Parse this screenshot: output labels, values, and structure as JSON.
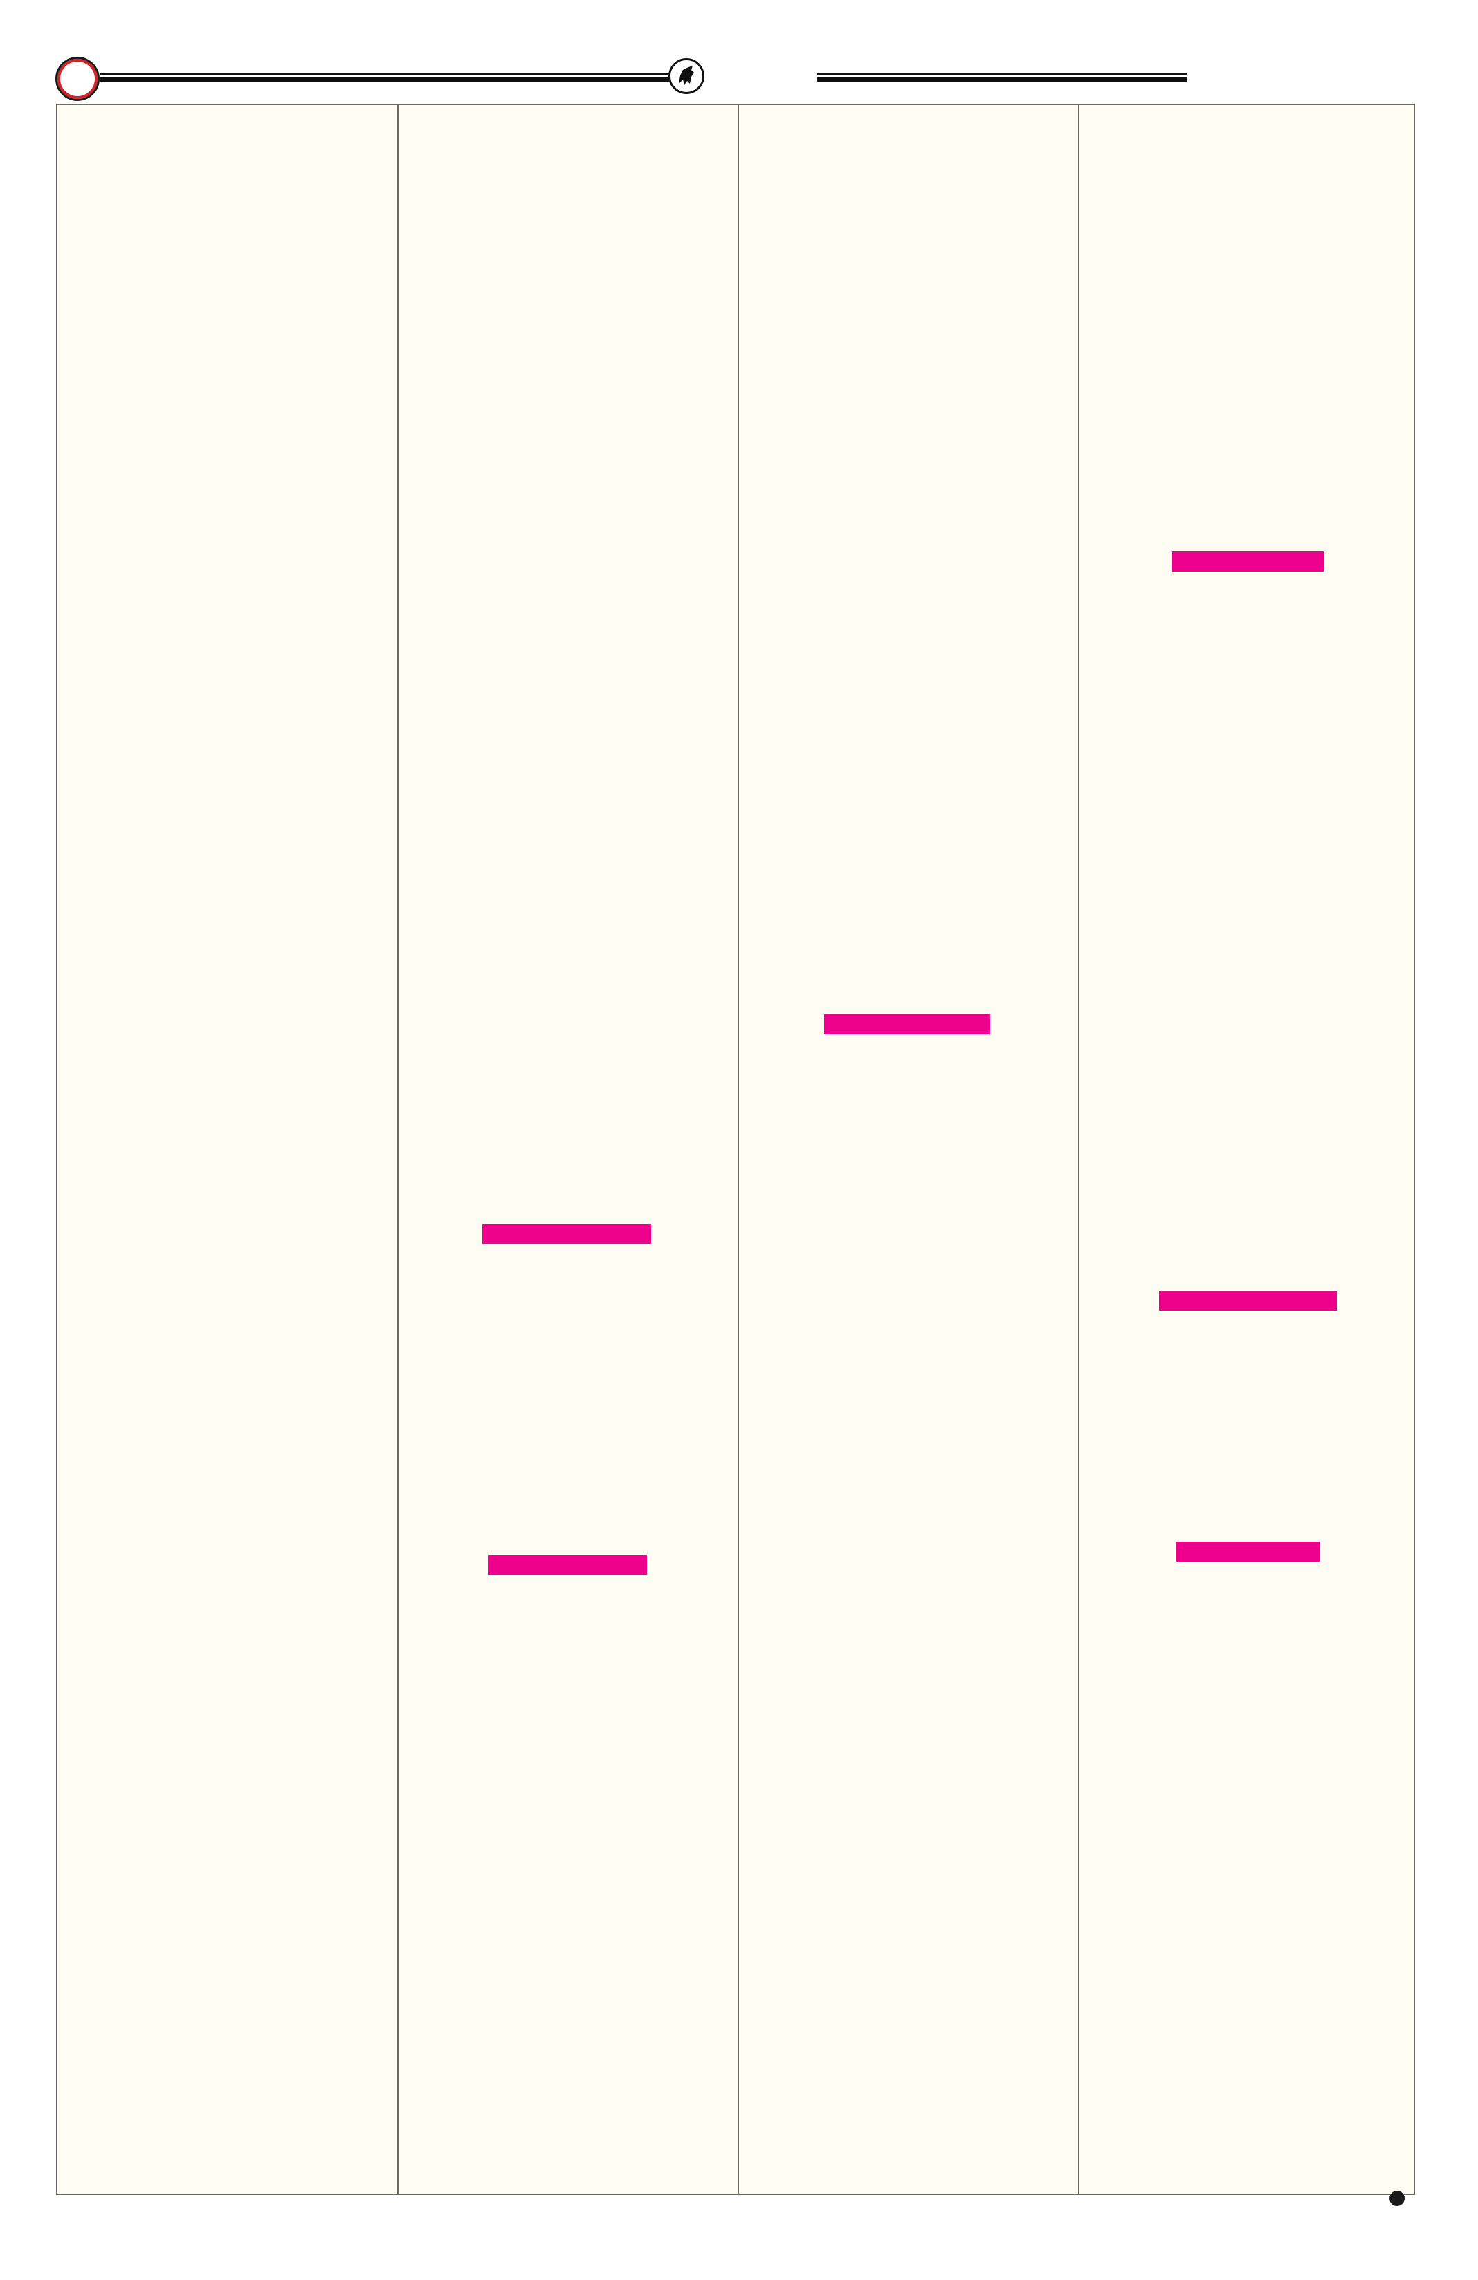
{
  "colors": {
    "page_background": "#fffcf3",
    "frame_border": "#6b6b62",
    "highlight_bar": "#ec008c",
    "ornament_ring": "#d2232a",
    "ink": "#1a1a1a"
  },
  "header": {
    "left_ornament_icon": "red-ring-icon",
    "center_ornament_icon": "bull-emblem-icon"
  },
  "columns": 4,
  "highlight_bars": [
    {
      "column": 4
    },
    {
      "column": 3
    },
    {
      "column": 2
    },
    {
      "column": 4
    },
    {
      "column": 2
    },
    {
      "column": 4
    }
  ],
  "footer": {
    "corner_icon": "bullet-dot-icon"
  }
}
